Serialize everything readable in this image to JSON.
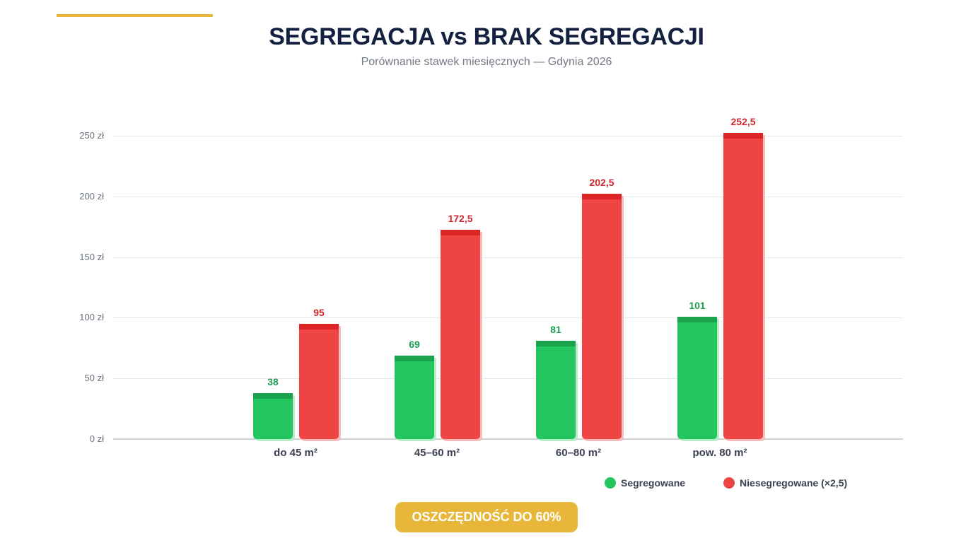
{
  "header": {
    "title": "SEGREGACJA vs BRAK SEGREGACJI",
    "subtitle": "Porównanie stawek miesięcznych — Gdynia 2026"
  },
  "colors": {
    "accent": "#e8b73a",
    "segregated": "#22c55e",
    "segregated_top": "#1aa34c",
    "unsegregated": "#ef4444",
    "unsegregated_top": "#dc2626",
    "title": "#13203f"
  },
  "axis": {
    "y_ticks": [
      "250 zł",
      "200 zł",
      "150 zł",
      "100 zł",
      "50 zł",
      "0 zł"
    ]
  },
  "groups": [
    {
      "label": "do 45 m²",
      "segregated_label": "38",
      "unsegregated_label": "95"
    },
    {
      "label": "45–60 m²",
      "segregated_label": "69",
      "unsegregated_label": "172,5"
    },
    {
      "label": "60–80 m²",
      "segregated_label": "81",
      "unsegregated_label": "202,5"
    },
    {
      "label": "pow. 80 m²",
      "segregated_label": "101",
      "unsegregated_label": "252,5"
    }
  ],
  "legend": {
    "segregated": "Segregowane",
    "unsegregated": "Niesegregowane (×2,5)"
  },
  "badge": {
    "label": "OSZCZĘDNOŚĆ DO 60%"
  },
  "chart_data": {
    "type": "bar",
    "title": "SEGREGACJA vs BRAK SEGREGACJI",
    "subtitle": "Porównanie stawek miesięcznych — Gdynia 2026",
    "categories": [
      "do 45 m²",
      "45–60 m²",
      "60–80 m²",
      "pow. 80 m²"
    ],
    "series": [
      {
        "name": "Segregowane",
        "color": "#22c55e",
        "values": [
          38,
          69,
          81,
          101
        ]
      },
      {
        "name": "Niesegregowane (×2,5)",
        "color": "#ef4444",
        "values": [
          95,
          172.5,
          202.5,
          252.5
        ]
      }
    ],
    "xlabel": "",
    "ylabel": "",
    "y_tick_format": "{} zł",
    "yticks": [
      0,
      50,
      100,
      150,
      200,
      250
    ],
    "ylim": [
      0,
      250
    ],
    "grid": true,
    "legend_position": "bottom-right",
    "data_labels": true,
    "annotation": "OSZCZĘDNOŚĆ DO 60%"
  }
}
